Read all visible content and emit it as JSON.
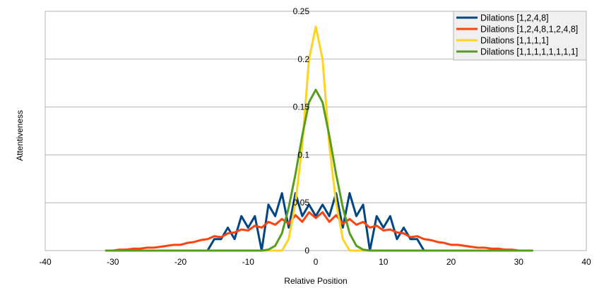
{
  "chart_data": {
    "type": "line",
    "xlabel": "Relative Position",
    "ylabel": "Attentiveness",
    "xlim": [
      -40,
      40
    ],
    "ylim": [
      0,
      0.25
    ],
    "x_ticks": [
      "-40",
      "-30",
      "-20",
      "-10",
      "0",
      "10",
      "20",
      "30",
      "40"
    ],
    "y_ticks": [
      "0",
      "0.05",
      "0.1",
      "0.15",
      "0.2",
      "0.25"
    ],
    "grid": "horizontal",
    "legend_position": "top-right",
    "series": [
      {
        "name": "Dilations [1,2,4,8]",
        "color": "#004586",
        "x": [
          -31,
          -30,
          -29,
          -28,
          -27,
          -26,
          -25,
          -24,
          -23,
          -22,
          -21,
          -20,
          -19,
          -18,
          -17,
          -16,
          -15,
          -14,
          -13,
          -12,
          -11,
          -10,
          -9,
          -8,
          -7,
          -6,
          -5,
          -4,
          -3,
          -2,
          -1,
          0,
          1,
          2,
          3,
          4,
          5,
          6,
          7,
          8,
          9,
          10,
          11,
          12,
          13,
          14,
          15,
          16,
          17,
          18,
          19,
          20,
          21,
          22,
          23,
          24,
          25,
          26,
          27,
          28,
          29,
          30,
          31,
          32
        ],
        "y": [
          0,
          0,
          0,
          0,
          0,
          0,
          0,
          0,
          0,
          0,
          0,
          0,
          0,
          0,
          0,
          0,
          0.012,
          0.012,
          0.024,
          0.012,
          0.036,
          0.024,
          0.036,
          0,
          0.048,
          0.036,
          0.06,
          0.024,
          0.06,
          0.036,
          0.048,
          0.036,
          0.048,
          0.036,
          0.06,
          0.024,
          0.06,
          0.036,
          0.048,
          0,
          0.036,
          0.024,
          0.036,
          0.012,
          0.024,
          0.012,
          0.012,
          0,
          0,
          0,
          0,
          0,
          0,
          0,
          0,
          0,
          0,
          0,
          0,
          0,
          0,
          0,
          0,
          0
        ]
      },
      {
        "name": "Dilations [1,2,4,8,1,2,4,8]",
        "color": "#ff420e",
        "x": [
          -31,
          -30,
          -29,
          -28,
          -27,
          -26,
          -25,
          -24,
          -23,
          -22,
          -21,
          -20,
          -19,
          -18,
          -17,
          -16,
          -15,
          -14,
          -13,
          -12,
          -11,
          -10,
          -9,
          -8,
          -7,
          -6,
          -5,
          -4,
          -3,
          -2,
          -1,
          0,
          1,
          2,
          3,
          4,
          5,
          6,
          7,
          8,
          9,
          10,
          11,
          12,
          13,
          14,
          15,
          16,
          17,
          18,
          19,
          20,
          21,
          22,
          23,
          24,
          25,
          26,
          27,
          28,
          29,
          30,
          31,
          32
        ],
        "y": [
          0,
          0,
          0.001,
          0.001,
          0.002,
          0.002,
          0.003,
          0.003,
          0.004,
          0.005,
          0.006,
          0.006,
          0.008,
          0.009,
          0.011,
          0.012,
          0.015,
          0.014,
          0.018,
          0.019,
          0.022,
          0.021,
          0.026,
          0.024,
          0.03,
          0.027,
          0.033,
          0.028,
          0.037,
          0.03,
          0.04,
          0.034,
          0.04,
          0.03,
          0.037,
          0.028,
          0.033,
          0.027,
          0.03,
          0.024,
          0.026,
          0.021,
          0.022,
          0.019,
          0.018,
          0.014,
          0.015,
          0.012,
          0.011,
          0.009,
          0.008,
          0.006,
          0.006,
          0.005,
          0.004,
          0.003,
          0.003,
          0.002,
          0.002,
          0.001,
          0.001,
          0,
          0,
          0
        ]
      },
      {
        "name": "Dilations [1,1,1,1]",
        "color": "#ffd320",
        "x": [
          -31,
          -30,
          -29,
          -28,
          -27,
          -26,
          -25,
          -24,
          -23,
          -22,
          -21,
          -20,
          -19,
          -18,
          -17,
          -16,
          -15,
          -14,
          -13,
          -12,
          -11,
          -10,
          -9,
          -8,
          -7,
          -6,
          -5,
          -4,
          -3,
          -2,
          -1,
          0,
          1,
          2,
          3,
          4,
          5,
          6,
          7,
          8,
          9,
          10,
          11,
          12,
          13,
          14,
          15,
          16,
          17,
          18,
          19,
          20,
          21,
          22,
          23,
          24,
          25,
          26,
          27,
          28,
          29,
          30,
          31,
          32
        ],
        "y": [
          0,
          0,
          0,
          0,
          0,
          0,
          0,
          0,
          0,
          0,
          0,
          0,
          0,
          0,
          0,
          0,
          0,
          0,
          0,
          0,
          0,
          0,
          0,
          0,
          0,
          0,
          0,
          0.012,
          0.05,
          0.11,
          0.2,
          0.234,
          0.2,
          0.11,
          0.05,
          0.012,
          0,
          0,
          0,
          0,
          0,
          0,
          0,
          0,
          0,
          0,
          0,
          0,
          0,
          0,
          0,
          0,
          0,
          0,
          0,
          0,
          0,
          0,
          0,
          0,
          0,
          0,
          0,
          0
        ]
      },
      {
        "name": "Dilations [1,1,1,1,1,1,1,1]",
        "color": "#579d1c",
        "x": [
          -31,
          -30,
          -29,
          -28,
          -27,
          -26,
          -25,
          -24,
          -23,
          -22,
          -21,
          -20,
          -19,
          -18,
          -17,
          -16,
          -15,
          -14,
          -13,
          -12,
          -11,
          -10,
          -9,
          -8,
          -7,
          -6,
          -5,
          -4,
          -3,
          -2,
          -1,
          0,
          1,
          2,
          3,
          4,
          5,
          6,
          7,
          8,
          9,
          10,
          11,
          12,
          13,
          14,
          15,
          16,
          17,
          18,
          19,
          20,
          21,
          22,
          23,
          24,
          25,
          26,
          27,
          28,
          29,
          30,
          31,
          32
        ],
        "y": [
          0,
          0,
          0,
          0,
          0,
          0,
          0,
          0,
          0,
          0,
          0,
          0,
          0,
          0,
          0,
          0,
          0,
          0,
          0,
          0,
          0,
          0,
          0,
          0,
          0.001,
          0.005,
          0.018,
          0.045,
          0.08,
          0.12,
          0.155,
          0.168,
          0.155,
          0.12,
          0.08,
          0.045,
          0.018,
          0.005,
          0.001,
          0,
          0,
          0,
          0,
          0,
          0,
          0,
          0,
          0,
          0,
          0,
          0,
          0,
          0,
          0,
          0,
          0,
          0,
          0,
          0,
          0,
          0,
          0,
          0,
          0
        ]
      }
    ]
  }
}
